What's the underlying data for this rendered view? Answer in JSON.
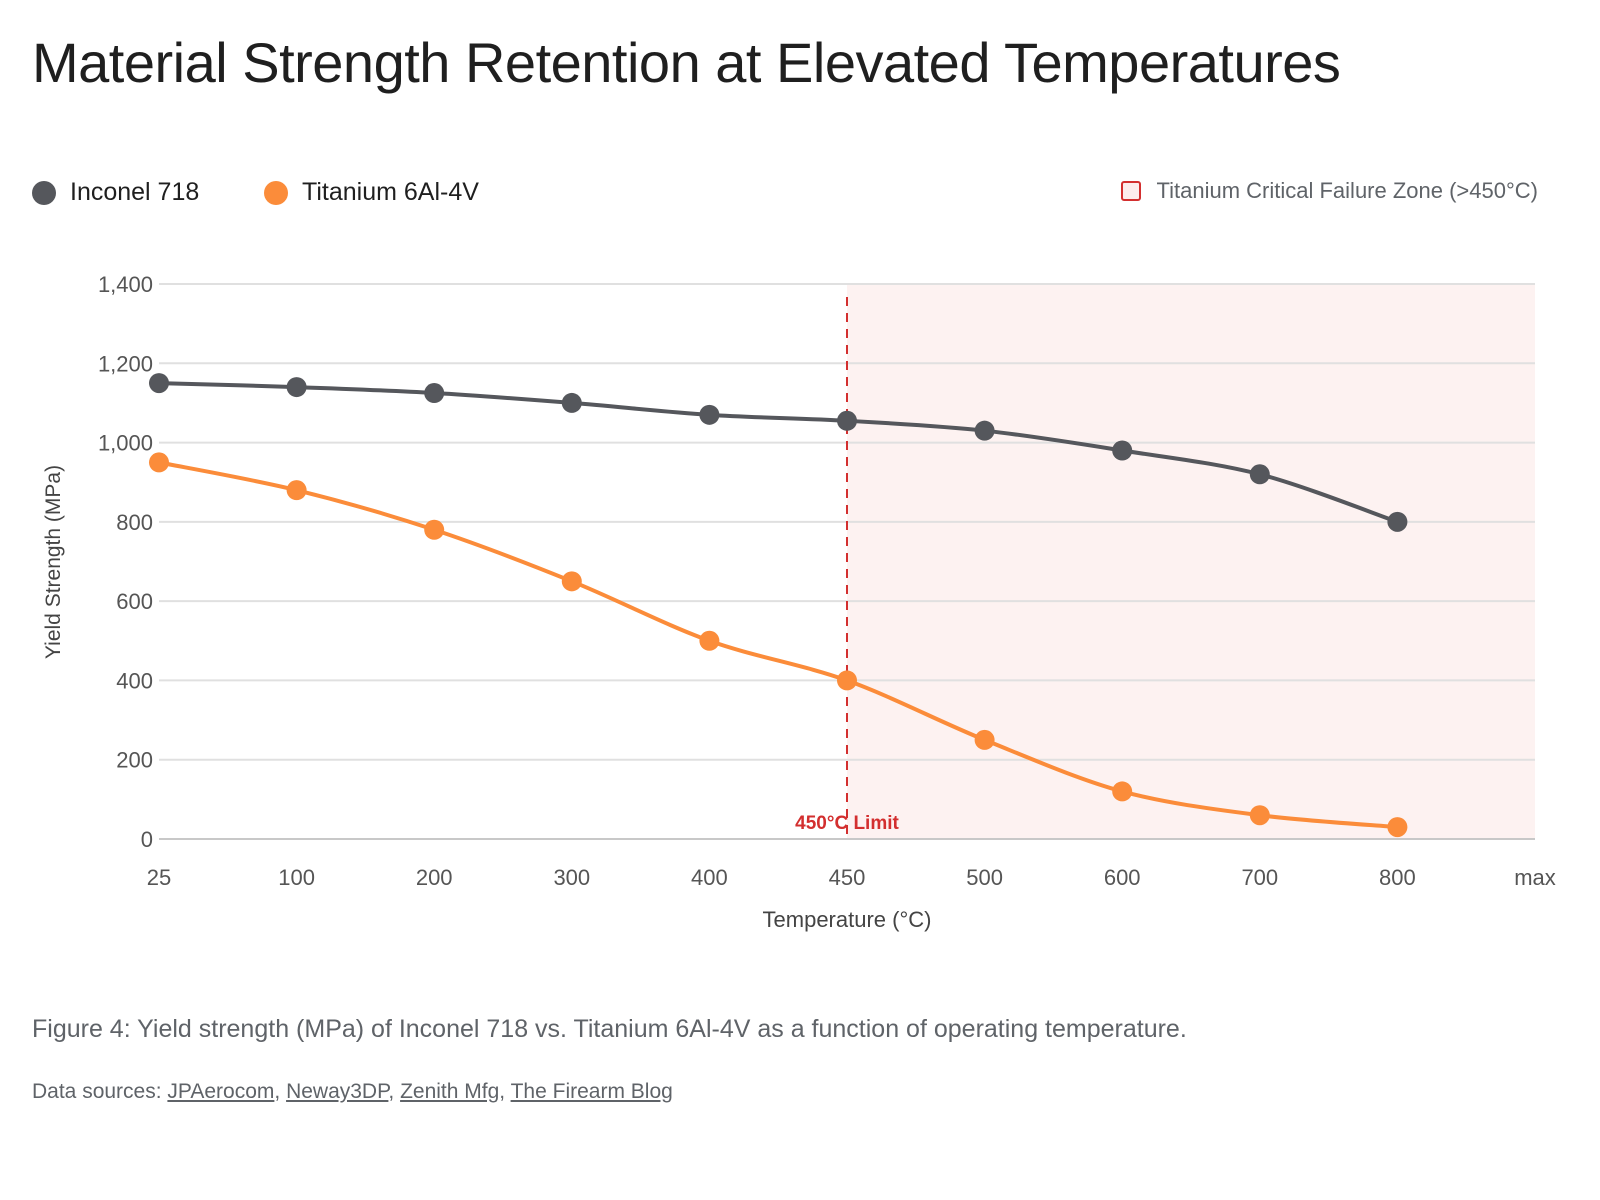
{
  "title": "Material Strength Retention at Elevated Temperatures",
  "legend": {
    "series": [
      {
        "name": "Inconel 718",
        "color": "#55575c"
      },
      {
        "name": "Titanium 6Al-4V",
        "color": "#fb8c3a"
      }
    ],
    "zone": {
      "label": "Titanium Critical Failure Zone (>450°C)",
      "color": "#d32f2f",
      "fill": "#fdf2f1"
    }
  },
  "chart_data": {
    "type": "line",
    "xlabel": "Temperature (°C)",
    "ylabel": "Yield Strength (MPa)",
    "categories": [
      "25",
      "100",
      "200",
      "300",
      "400",
      "450",
      "500",
      "600",
      "700",
      "800",
      "max"
    ],
    "yticks": [
      "0",
      "200",
      "400",
      "600",
      "800",
      "1,000",
      "1,200",
      "1,400"
    ],
    "ylim": [
      0,
      1400
    ],
    "grid": true,
    "legend_position": "top",
    "series": [
      {
        "name": "Inconel 718",
        "color": "#55575c",
        "values": [
          1150,
          1140,
          1125,
          1100,
          1070,
          1055,
          1030,
          980,
          920,
          800,
          null
        ]
      },
      {
        "name": "Titanium 6Al-4V",
        "color": "#fb8c3a",
        "values": [
          950,
          880,
          780,
          650,
          500,
          400,
          250,
          120,
          60,
          30,
          null
        ]
      }
    ],
    "annotations": [
      {
        "type": "vline",
        "x": "450",
        "label": "450°C Limit",
        "color": "#d32f2f"
      },
      {
        "type": "shaded_region",
        "x_from": "450",
        "x_to": "max",
        "label": "Titanium Critical Failure Zone (>450°C)"
      }
    ]
  },
  "caption": "Figure 4: Yield strength (MPa) of Inconel 718 vs. Titanium 6Al-4V as a function of operating temperature.",
  "sources": {
    "prefix": "Data sources: ",
    "links": [
      "JPAerocom",
      "Neway3DP",
      "Zenith Mfg",
      "The Firearm Blog"
    ]
  }
}
